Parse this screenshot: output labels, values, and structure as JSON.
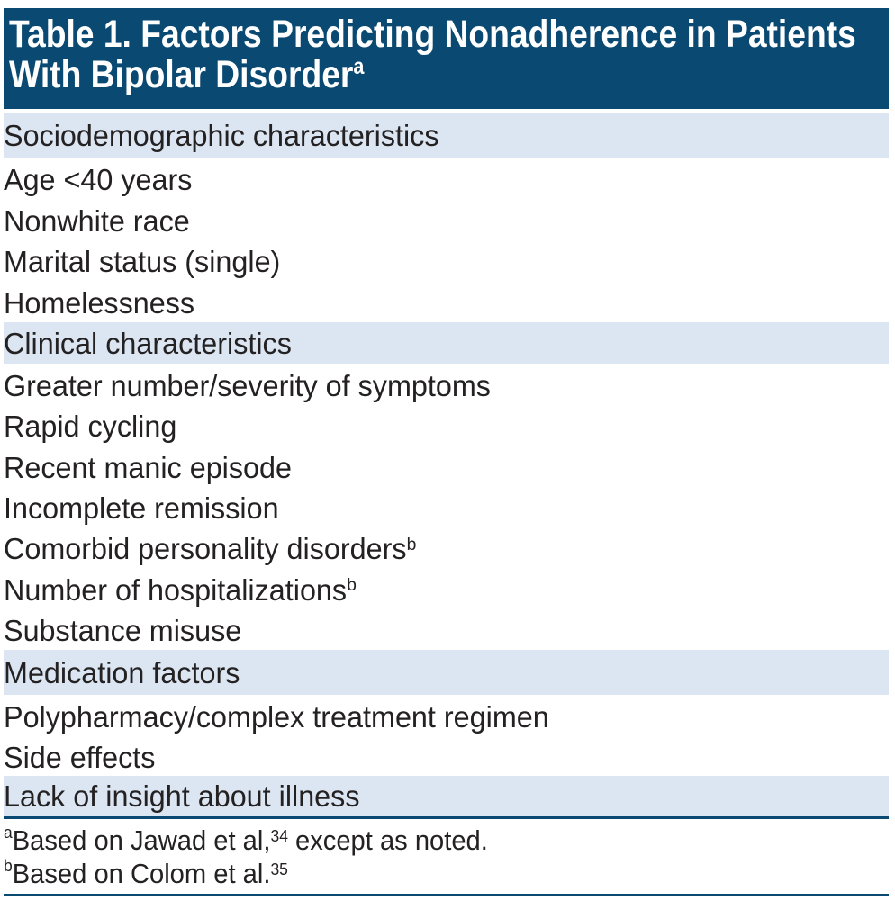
{
  "table": {
    "title": {
      "text": "Table 1. Factors Predicting Nonadherence in Patients With Bipolar Disorder",
      "superscript": "a"
    },
    "rows": [
      {
        "label": "Sociodemographic characteristics",
        "type": "section",
        "superscript": ""
      },
      {
        "label": "Age <40 years",
        "type": "item",
        "superscript": ""
      },
      {
        "label": "Nonwhite race",
        "type": "item",
        "superscript": ""
      },
      {
        "label": "Marital status (single)",
        "type": "item",
        "superscript": ""
      },
      {
        "label": "Homelessness",
        "type": "item",
        "superscript": ""
      },
      {
        "label": "Clinical characteristics",
        "type": "section",
        "superscript": ""
      },
      {
        "label": "Greater number/severity of symptoms",
        "type": "item",
        "superscript": ""
      },
      {
        "label": "Rapid cycling",
        "type": "item",
        "superscript": ""
      },
      {
        "label": "Recent manic episode",
        "type": "item",
        "superscript": ""
      },
      {
        "label": "Incomplete remission",
        "type": "item",
        "superscript": ""
      },
      {
        "label": "Comorbid personality disorders",
        "type": "item",
        "superscript": "b"
      },
      {
        "label": "Number of hospitalizations",
        "type": "item",
        "superscript": "b"
      },
      {
        "label": "Substance misuse",
        "type": "item",
        "superscript": ""
      },
      {
        "label": "Medication factors",
        "type": "section",
        "superscript": ""
      },
      {
        "label": "Polypharmacy/complex treatment regimen",
        "type": "item",
        "superscript": ""
      },
      {
        "label": "Side effects",
        "type": "item",
        "superscript": ""
      },
      {
        "label": "Lack of insight about illness",
        "type": "section",
        "superscript": ""
      }
    ],
    "footnotes": [
      {
        "marker": "a",
        "text": "Based on Jawad et al,",
        "ref": "34",
        "tail": " except as noted."
      },
      {
        "marker": "b",
        "text": "Based on Colom et al.",
        "ref": "35",
        "tail": ""
      }
    ],
    "colors": {
      "header_background": "#0a4a72",
      "section_row_background": "#dce6f2",
      "rule": "#0a4a72",
      "title_text": "#ffffff",
      "body_text": "#242122",
      "page_background": "#ffffff"
    }
  }
}
